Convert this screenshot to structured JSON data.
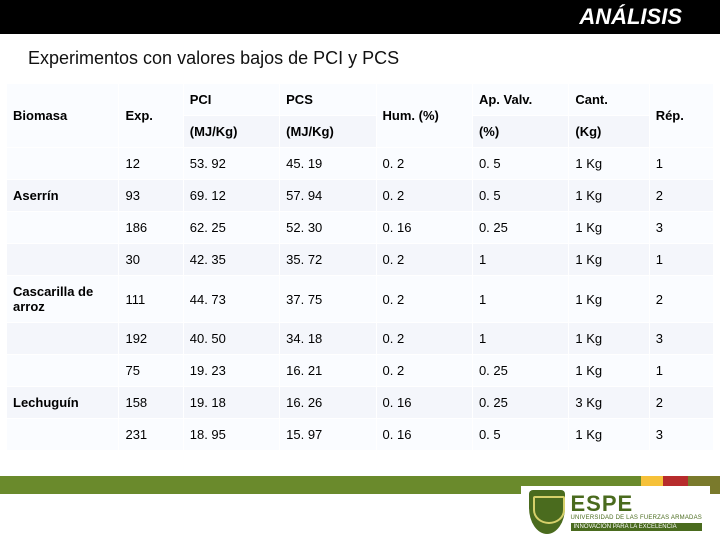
{
  "header": {
    "title": "ANÁLISIS"
  },
  "subtitle": "Experimentos con valores bajos de PCI y PCS",
  "table": {
    "header": {
      "biomasa": "Biomasa",
      "exp": "Exp.",
      "pci_top": "PCI",
      "pci_sub": "(MJ/Kg)",
      "pcs_top": "PCS",
      "pcs_sub": "(MJ/Kg)",
      "hum": "Hum. (%)",
      "ap_top": "Ap. Valv.",
      "ap_sub": "(%)",
      "cant_top": "Cant.",
      "cant_sub": "(Kg)",
      "rep": "Rép."
    },
    "groups": [
      {
        "biomasa": "Aserrín",
        "rows": [
          {
            "exp": "12",
            "pci": "53. 92",
            "pcs": "45. 19",
            "hum": "0. 2",
            "ap": "0. 5",
            "cant": "1 Kg",
            "rep": "1"
          },
          {
            "exp": "93",
            "pci": "69. 12",
            "pcs": "57. 94",
            "hum": "0. 2",
            "ap": "0. 5",
            "cant": "1 Kg",
            "rep": "2"
          },
          {
            "exp": "186",
            "pci": "62. 25",
            "pcs": "52. 30",
            "hum": "0. 16",
            "ap": "0. 25",
            "cant": "1 Kg",
            "rep": "3"
          }
        ]
      },
      {
        "biomasa": "Cascarilla de arroz",
        "rows": [
          {
            "exp": "30",
            "pci": "42. 35",
            "pcs": "35. 72",
            "hum": "0. 2",
            "ap": "1",
            "cant": "1 Kg",
            "rep": "1"
          },
          {
            "exp": "111",
            "pci": "44. 73",
            "pcs": "37. 75",
            "hum": "0. 2",
            "ap": "1",
            "cant": "1 Kg",
            "rep": "2"
          },
          {
            "exp": "192",
            "pci": "40. 50",
            "pcs": "34. 18",
            "hum": "0. 2",
            "ap": "1",
            "cant": "1 Kg",
            "rep": "3"
          }
        ]
      },
      {
        "biomasa": "Lechuguín",
        "rows": [
          {
            "exp": "75",
            "pci": "19. 23",
            "pcs": "16. 21",
            "hum": "0. 2",
            "ap": "0. 25",
            "cant": "1 Kg",
            "rep": "1"
          },
          {
            "exp": "158",
            "pci": "19. 18",
            "pcs": "16. 26",
            "hum": "0. 16",
            "ap": "0. 25",
            "cant": "3 Kg",
            "rep": "2"
          },
          {
            "exp": "231",
            "pci": "18. 95",
            "pcs": "15. 97",
            "hum": "0. 16",
            "ap": "0. 5",
            "cant": "1 Kg",
            "rep": "3"
          }
        ]
      }
    ]
  },
  "logo": {
    "name": "ESPE",
    "line1": "UNIVERSIDAD DE LAS FUERZAS ARMADAS",
    "tag": "INNOVACIÓN PARA LA EXCELENCIA"
  },
  "colors": {
    "header_bg": "#000000",
    "header_fg": "#ffffff",
    "cell_bg_a": "#fafcff",
    "cell_bg_b": "#f4f6fb",
    "stripe_green": "#6a8a2c",
    "stripe_yellow": "#f6c139",
    "stripe_red": "#b72c2c",
    "stripe_olive": "#7a7a2c",
    "logo_green": "#4a6b1e"
  }
}
